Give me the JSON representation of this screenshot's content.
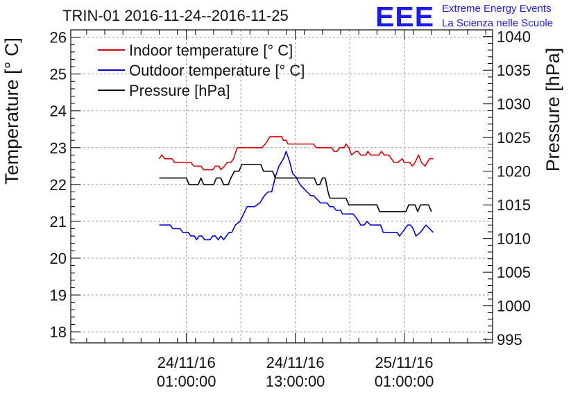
{
  "title": "TRIN-01 2016-11-24--2016-11-25",
  "logo": {
    "mark": "EEE",
    "line1": "Extreme Energy Events",
    "line2": "La Scienza nelle Scuole"
  },
  "chart_data": {
    "type": "line",
    "title": "TRIN-01 2016-11-24--2016-11-25",
    "x_unit": "hours since 2016-11-24 00:00",
    "x_ticks": [
      {
        "hours": 1,
        "line1": "24/11/16",
        "line2": "01:00:00"
      },
      {
        "hours": 13,
        "line1": "24/11/16",
        "line2": "13:00:00"
      },
      {
        "hours": 25,
        "line1": "25/11/16",
        "line2": "01:00:00"
      }
    ],
    "xlim": [
      -11.75,
      34.75
    ],
    "ylabel_left": "Temperature [° C]",
    "ylabel_right": "Pressure [hPa]",
    "ylim_left": [
      17.7,
      26.2
    ],
    "ylim_right": [
      994.5,
      1041
    ],
    "yticks_left": [
      "18",
      "19",
      "20",
      "21",
      "22",
      "23",
      "24",
      "25",
      "26"
    ],
    "yticks_right": [
      "995",
      "1000",
      "1005",
      "1010",
      "1015",
      "1020",
      "1025",
      "1030",
      "1035",
      "1040"
    ],
    "grid": true,
    "legend": "top-left",
    "series": [
      {
        "name": "Indoor temperature [° C]",
        "axis": "left",
        "color": "#dd0000",
        "points": [
          [
            -2,
            22.7
          ],
          [
            -1.7,
            22.8
          ],
          [
            -1.4,
            22.7
          ],
          [
            -0.6,
            22.7
          ],
          [
            -0.3,
            22.6
          ],
          [
            1.5,
            22.6
          ],
          [
            1.8,
            22.5
          ],
          [
            2.6,
            22.5
          ],
          [
            2.9,
            22.4
          ],
          [
            3.9,
            22.4
          ],
          [
            4.2,
            22.5
          ],
          [
            4.6,
            22.5
          ],
          [
            4.8,
            22.4
          ],
          [
            5.2,
            22.5
          ],
          [
            5.5,
            22.6
          ],
          [
            5.9,
            22.6
          ],
          [
            6.2,
            22.7
          ],
          [
            6.6,
            23.0
          ],
          [
            6.8,
            23.0
          ],
          [
            9.3,
            23.0
          ],
          [
            9.7,
            23.1
          ],
          [
            10.2,
            23.3
          ],
          [
            11.5,
            23.3
          ],
          [
            11.7,
            23.2
          ],
          [
            12.0,
            23.2
          ],
          [
            12.2,
            23.1
          ],
          [
            15.0,
            23.1
          ],
          [
            15.3,
            23.0
          ],
          [
            17.0,
            23.0
          ],
          [
            17.3,
            22.9
          ],
          [
            17.6,
            22.9
          ],
          [
            17.9,
            23.0
          ],
          [
            18.4,
            23.0
          ],
          [
            18.6,
            23.1
          ],
          [
            18.9,
            23.0
          ],
          [
            19.2,
            22.8
          ],
          [
            19.7,
            22.9
          ],
          [
            19.9,
            22.9
          ],
          [
            20.2,
            22.8
          ],
          [
            20.8,
            22.8
          ],
          [
            21.0,
            22.9
          ],
          [
            21.3,
            22.8
          ],
          [
            22.2,
            22.8
          ],
          [
            22.5,
            22.9
          ],
          [
            22.8,
            22.8
          ],
          [
            23.3,
            22.8
          ],
          [
            23.6,
            22.7
          ],
          [
            23.9,
            22.6
          ],
          [
            24.3,
            22.6
          ],
          [
            24.8,
            22.7
          ],
          [
            25.0,
            22.6
          ],
          [
            25.3,
            22.6
          ],
          [
            25.6,
            22.6
          ],
          [
            25.9,
            22.5
          ],
          [
            26.2,
            22.6
          ],
          [
            26.6,
            22.8
          ],
          [
            26.9,
            22.6
          ],
          [
            27.3,
            22.5
          ],
          [
            27.8,
            22.7
          ],
          [
            28.2,
            22.7
          ]
        ]
      },
      {
        "name": "Outdoor temperature [° C]",
        "axis": "left",
        "color": "#0000dd",
        "points": [
          [
            -2,
            20.9
          ],
          [
            -0.8,
            20.9
          ],
          [
            -0.5,
            20.8
          ],
          [
            0.3,
            20.8
          ],
          [
            0.6,
            20.7
          ],
          [
            1.2,
            20.7
          ],
          [
            1.5,
            20.6
          ],
          [
            1.9,
            20.6
          ],
          [
            2.1,
            20.5
          ],
          [
            2.4,
            20.6
          ],
          [
            2.7,
            20.6
          ],
          [
            3.0,
            20.5
          ],
          [
            3.6,
            20.5
          ],
          [
            3.9,
            20.6
          ],
          [
            4.2,
            20.6
          ],
          [
            4.5,
            20.5
          ],
          [
            4.8,
            20.6
          ],
          [
            5.1,
            20.5
          ],
          [
            5.4,
            20.6
          ],
          [
            5.7,
            20.7
          ],
          [
            6.0,
            20.7
          ],
          [
            6.4,
            20.9
          ],
          [
            6.9,
            21.0
          ],
          [
            7.3,
            21.2
          ],
          [
            7.7,
            21.4
          ],
          [
            8.5,
            21.4
          ],
          [
            9.1,
            21.5
          ],
          [
            9.6,
            21.7
          ],
          [
            10.0,
            21.8
          ],
          [
            10.4,
            21.8
          ],
          [
            10.8,
            22.2
          ],
          [
            11.2,
            22.5
          ],
          [
            11.7,
            22.7
          ],
          [
            12.0,
            22.9
          ],
          [
            12.4,
            22.6
          ],
          [
            12.7,
            22.3
          ],
          [
            13.1,
            22.2
          ],
          [
            13.5,
            22.0
          ],
          [
            13.9,
            21.9
          ],
          [
            14.3,
            21.8
          ],
          [
            14.7,
            21.7
          ],
          [
            15.0,
            21.7
          ],
          [
            15.4,
            21.6
          ],
          [
            15.8,
            21.5
          ],
          [
            16.5,
            21.5
          ],
          [
            16.8,
            21.4
          ],
          [
            17.2,
            21.4
          ],
          [
            17.5,
            21.3
          ],
          [
            18.0,
            21.3
          ],
          [
            18.2,
            21.2
          ],
          [
            19.4,
            21.2
          ],
          [
            19.7,
            21.1
          ],
          [
            20.0,
            21.0
          ],
          [
            20.2,
            20.9
          ],
          [
            20.6,
            20.9
          ],
          [
            20.9,
            21.0
          ],
          [
            21.3,
            20.9
          ],
          [
            22.4,
            20.9
          ],
          [
            22.7,
            20.7
          ],
          [
            24.2,
            20.7
          ],
          [
            24.5,
            20.6
          ],
          [
            24.8,
            20.7
          ],
          [
            25.1,
            20.8
          ],
          [
            25.4,
            20.9
          ],
          [
            25.7,
            20.9
          ],
          [
            26.0,
            20.8
          ],
          [
            26.3,
            20.6
          ],
          [
            26.8,
            20.7
          ],
          [
            27.1,
            20.8
          ],
          [
            27.4,
            20.9
          ],
          [
            27.8,
            20.8
          ],
          [
            28.2,
            20.7
          ]
        ]
      },
      {
        "name": "Pressure [hPa]",
        "axis": "right",
        "color": "#000000",
        "points": [
          [
            -2,
            1019.0
          ],
          [
            1.0,
            1019.0
          ],
          [
            1.3,
            1018.0
          ],
          [
            2.3,
            1018.0
          ],
          [
            2.6,
            1019.0
          ],
          [
            2.9,
            1018.0
          ],
          [
            4.0,
            1018.0
          ],
          [
            4.3,
            1019.0
          ],
          [
            4.8,
            1019.0
          ],
          [
            5.1,
            1018.0
          ],
          [
            5.6,
            1018.0
          ],
          [
            5.9,
            1019.0
          ],
          [
            6.3,
            1020.0
          ],
          [
            6.8,
            1020.0
          ],
          [
            7.1,
            1021.0
          ],
          [
            9.2,
            1021.0
          ],
          [
            9.5,
            1020.0
          ],
          [
            10.5,
            1020.0
          ],
          [
            10.8,
            1019.0
          ],
          [
            15.1,
            1019.0
          ],
          [
            15.4,
            1018.0
          ],
          [
            15.7,
            1018.0
          ],
          [
            16.0,
            1019.0
          ],
          [
            16.3,
            1019.0
          ],
          [
            16.6,
            1017.0
          ],
          [
            16.8,
            1016.0
          ],
          [
            18.6,
            1016.0
          ],
          [
            18.9,
            1015.0
          ],
          [
            22.0,
            1015.0
          ],
          [
            22.3,
            1014.0
          ],
          [
            25.2,
            1014.0
          ],
          [
            25.5,
            1015.0
          ],
          [
            26.2,
            1015.0
          ],
          [
            26.5,
            1014.0
          ],
          [
            26.8,
            1015.0
          ],
          [
            27.7,
            1015.0
          ],
          [
            28.0,
            1014.0
          ]
        ]
      }
    ]
  }
}
